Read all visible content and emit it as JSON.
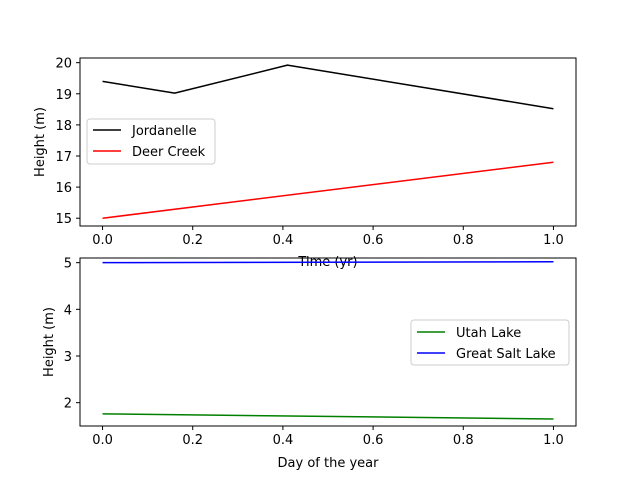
{
  "chart_data": [
    {
      "type": "line",
      "xlabel": "Time (yr)",
      "ylabel": "Height (m)",
      "xlim": [
        -0.05,
        1.05
      ],
      "ylim": [
        14.75,
        20.15
      ],
      "xticks": [
        0.0,
        0.2,
        0.4,
        0.6,
        0.8,
        1.0
      ],
      "xtick_labels": [
        "0.0",
        "0.2",
        "0.4",
        "0.6",
        "0.8",
        "1.0"
      ],
      "yticks": [
        15,
        16,
        17,
        18,
        19,
        20
      ],
      "ytick_labels": [
        "15",
        "16",
        "17",
        "18",
        "19",
        "20"
      ],
      "grid": false,
      "legend_position": "center-left",
      "series": [
        {
          "name": "Jordanelle",
          "color": "#000000",
          "x": [
            0.0,
            0.16,
            0.41,
            1.0
          ],
          "y": [
            19.4,
            19.02,
            19.92,
            18.52
          ]
        },
        {
          "name": "Deer Creek",
          "color": "#ff0000",
          "x": [
            0.0,
            1.0
          ],
          "y": [
            15.0,
            16.8
          ]
        }
      ]
    },
    {
      "type": "line",
      "xlabel": "Day of the year",
      "ylabel": "Height (m)",
      "xlim": [
        -0.05,
        1.05
      ],
      "ylim": [
        1.5,
        5.1
      ],
      "xticks": [
        0.0,
        0.2,
        0.4,
        0.6,
        0.8,
        1.0
      ],
      "xtick_labels": [
        "0.0",
        "0.2",
        "0.4",
        "0.6",
        "0.8",
        "1.0"
      ],
      "yticks": [
        2,
        3,
        4,
        5
      ],
      "ytick_labels": [
        "2",
        "3",
        "4",
        "5"
      ],
      "grid": false,
      "legend_position": "center-right",
      "series": [
        {
          "name": "Utah Lake",
          "color": "#008000",
          "x": [
            0.0,
            1.0
          ],
          "y": [
            1.76,
            1.65
          ]
        },
        {
          "name": "Great Salt Lake",
          "color": "#0000ff",
          "x": [
            0.0,
            1.0
          ],
          "y": [
            5.0,
            5.02
          ]
        }
      ]
    }
  ]
}
